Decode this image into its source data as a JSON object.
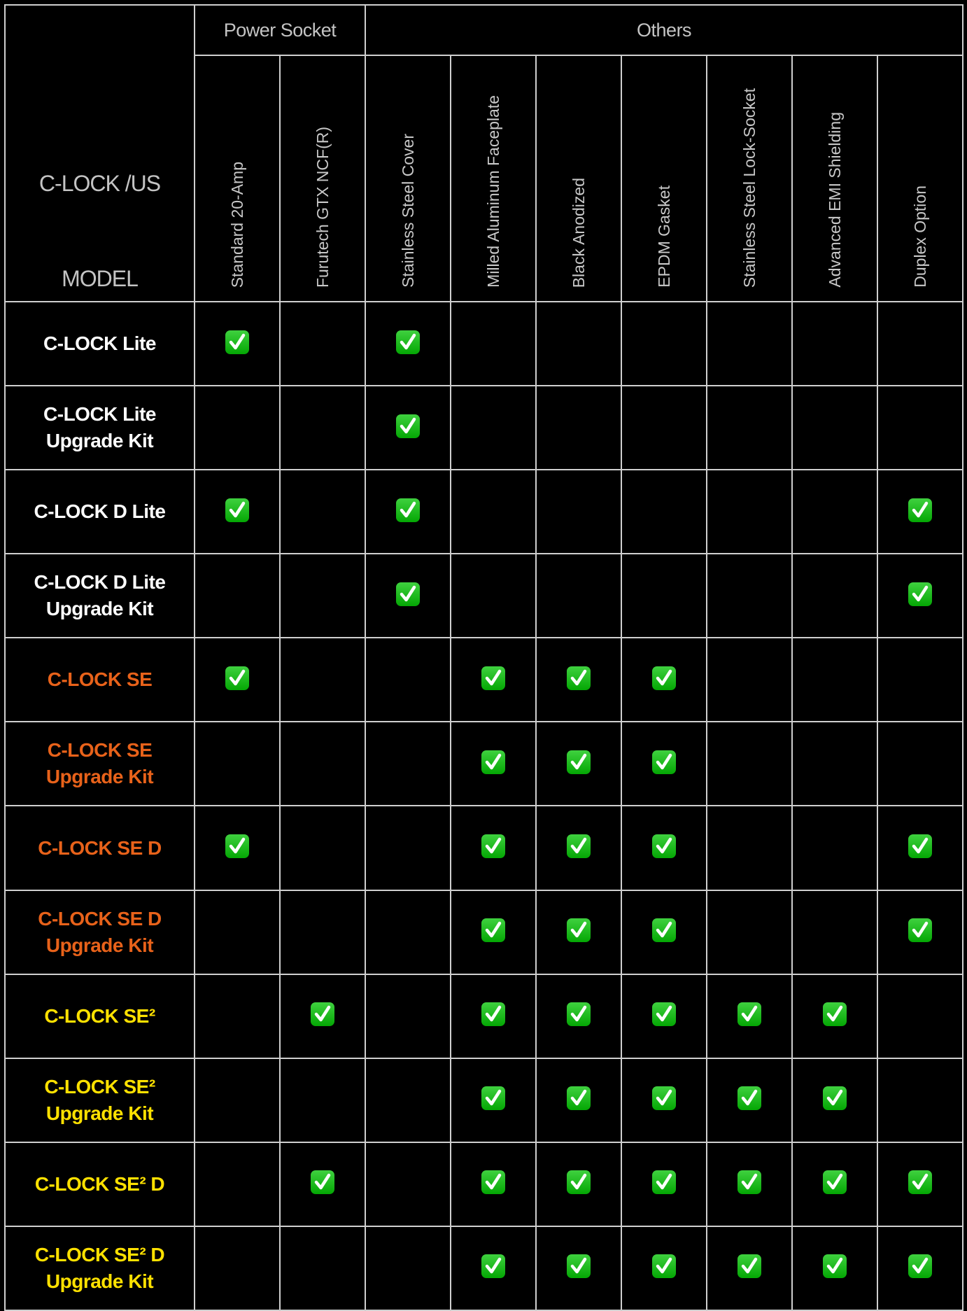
{
  "header": {
    "corner_title": "C-LOCK /US",
    "corner_subtitle": "MODEL",
    "groups": [
      {
        "label": "Power Socket",
        "span": 2
      },
      {
        "label": "Others",
        "span": 7
      }
    ],
    "features": [
      "Standard 20-Amp",
      "Furutech GTX NCF(R)",
      "Stainless Steel Cover",
      "Milled Aluminum Faceplate",
      "Black Anodized",
      "EPDM Gasket",
      "Stainless Steel Lock-Socket",
      "Advanced EMI Shielding",
      "Duplex Option"
    ]
  },
  "colors": {
    "white": "#ffffff",
    "orange": "#e8621a",
    "yellow": "#ffe100",
    "check": "#0fb80f",
    "grid": "#cfcfcf"
  },
  "check_icon": "white-heavy-check-mark-icon",
  "rows": [
    {
      "name": [
        "C-LOCK Lite"
      ],
      "color": "#ffffff",
      "checks": [
        1,
        0,
        1,
        0,
        0,
        0,
        0,
        0,
        0
      ]
    },
    {
      "name": [
        "C-LOCK Lite",
        "Upgrade Kit"
      ],
      "color": "#ffffff",
      "checks": [
        0,
        0,
        1,
        0,
        0,
        0,
        0,
        0,
        0
      ]
    },
    {
      "name": [
        "C-LOCK D Lite"
      ],
      "color": "#ffffff",
      "checks": [
        1,
        0,
        1,
        0,
        0,
        0,
        0,
        0,
        1
      ]
    },
    {
      "name": [
        "C-LOCK D Lite",
        "Upgrade Kit"
      ],
      "color": "#ffffff",
      "checks": [
        0,
        0,
        1,
        0,
        0,
        0,
        0,
        0,
        1
      ]
    },
    {
      "name": [
        "C-LOCK SE"
      ],
      "color": "#e8621a",
      "checks": [
        1,
        0,
        0,
        1,
        1,
        1,
        0,
        0,
        0
      ]
    },
    {
      "name": [
        "C-LOCK SE",
        "Upgrade Kit"
      ],
      "color": "#e8621a",
      "checks": [
        0,
        0,
        0,
        1,
        1,
        1,
        0,
        0,
        0
      ]
    },
    {
      "name": [
        "C-LOCK SE D"
      ],
      "color": "#e8621a",
      "checks": [
        1,
        0,
        0,
        1,
        1,
        1,
        0,
        0,
        1
      ]
    },
    {
      "name": [
        "C-LOCK SE D",
        "Upgrade Kit"
      ],
      "color": "#e8621a",
      "checks": [
        0,
        0,
        0,
        1,
        1,
        1,
        0,
        0,
        1
      ]
    },
    {
      "name": [
        "C-LOCK SE²"
      ],
      "color": "#ffe100",
      "checks": [
        0,
        1,
        0,
        1,
        1,
        1,
        1,
        1,
        0
      ]
    },
    {
      "name": [
        "C-LOCK SE²",
        "Upgrade Kit"
      ],
      "color": "#ffe100",
      "checks": [
        0,
        0,
        0,
        1,
        1,
        1,
        1,
        1,
        0
      ]
    },
    {
      "name": [
        "C-LOCK SE² D"
      ],
      "color": "#ffe100",
      "checks": [
        0,
        1,
        0,
        1,
        1,
        1,
        1,
        1,
        1
      ]
    },
    {
      "name": [
        "C-LOCK SE² D",
        "Upgrade Kit"
      ],
      "color": "#ffe100",
      "checks": [
        0,
        0,
        0,
        1,
        1,
        1,
        1,
        1,
        1
      ]
    }
  ]
}
